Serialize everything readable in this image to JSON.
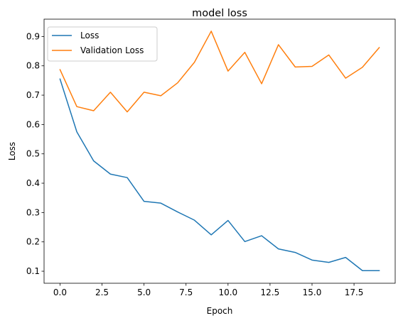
{
  "chart_data": {
    "type": "line",
    "title": "model loss",
    "xlabel": "Epoch",
    "ylabel": "Loss",
    "xlim": [
      -0.95,
      19.95
    ],
    "ylim": [
      0.059,
      0.959
    ],
    "xticks": [
      0.0,
      2.5,
      5.0,
      7.5,
      10.0,
      12.5,
      15.0,
      17.5
    ],
    "xtick_labels": [
      "0.0",
      "2.5",
      "5.0",
      "7.5",
      "10.0",
      "12.5",
      "15.0",
      "17.5"
    ],
    "yticks": [
      0.1,
      0.2,
      0.3,
      0.4,
      0.5,
      0.6,
      0.7,
      0.8,
      0.9
    ],
    "ytick_labels": [
      "0.1",
      "0.2",
      "0.3",
      "0.4",
      "0.5",
      "0.6",
      "0.7",
      "0.8",
      "0.9"
    ],
    "grid": false,
    "legend_position": "top-left",
    "x": [
      0,
      1,
      2,
      3,
      4,
      5,
      6,
      7,
      8,
      9,
      10,
      11,
      12,
      13,
      14,
      15,
      16,
      17,
      18,
      19
    ],
    "series": [
      {
        "name": "Loss",
        "color": "#1f77b4",
        "values": [
          0.755,
          0.575,
          0.476,
          0.431,
          0.419,
          0.338,
          0.332,
          0.302,
          0.274,
          0.224,
          0.273,
          0.201,
          0.221,
          0.176,
          0.164,
          0.138,
          0.13,
          0.147,
          0.102,
          0.102
        ]
      },
      {
        "name": "Validation Loss",
        "color": "#ff7f0e",
        "values": [
          0.787,
          0.661,
          0.647,
          0.71,
          0.643,
          0.71,
          0.698,
          0.742,
          0.812,
          0.918,
          0.782,
          0.846,
          0.739,
          0.872,
          0.796,
          0.798,
          0.837,
          0.758,
          0.795,
          0.862
        ]
      }
    ]
  }
}
